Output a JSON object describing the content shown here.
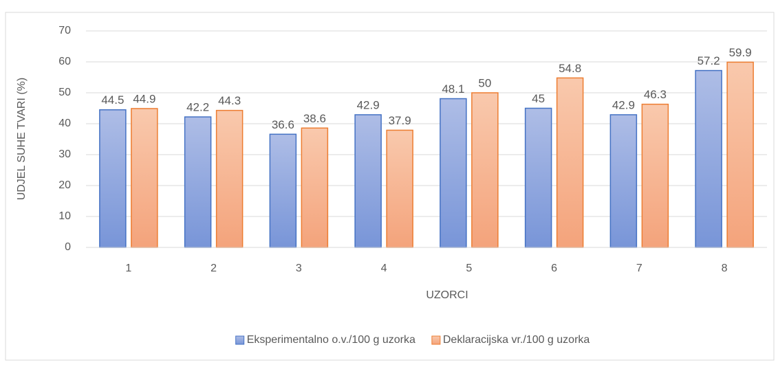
{
  "chart_data": {
    "type": "bar",
    "xlabel": "UZORCI",
    "ylabel": "UDJEL SUHE TVARI (%)",
    "categories": [
      "1",
      "2",
      "3",
      "4",
      "5",
      "6",
      "7",
      "8"
    ],
    "series": [
      {
        "name": "Eksperimentalno o.v./100 g uzorka",
        "color": "#4472c4",
        "gradient": [
          "#aebde6",
          "#7895d8"
        ],
        "values": [
          44.5,
          42.2,
          36.6,
          42.9,
          48.1,
          45,
          42.9,
          57.2
        ]
      },
      {
        "name": "Deklaracijska vr./100 g uzorka",
        "color": "#ed7d31",
        "gradient": [
          "#f9c9ad",
          "#f4a37b"
        ],
        "values": [
          44.9,
          44.3,
          38.6,
          37.9,
          50,
          54.8,
          46.3,
          59.9
        ]
      }
    ],
    "ylim": [
      0,
      70
    ],
    "yticks": [
      0,
      10,
      20,
      30,
      40,
      50,
      60,
      70
    ],
    "grid": true,
    "legend": "bottom"
  }
}
